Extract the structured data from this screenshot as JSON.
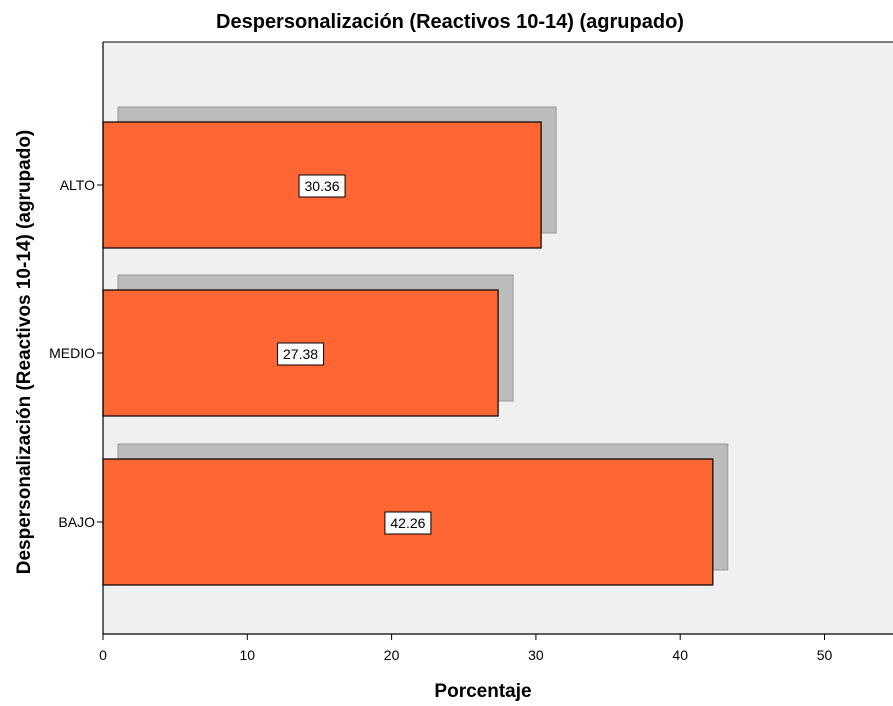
{
  "chart_data": {
    "type": "bar",
    "orientation": "horizontal",
    "title": "Despersonalización (Reactivos 10-14) (agrupado)",
    "xlabel": "Porcentaje",
    "ylabel": "Despersonalización (Reactivos 10-14) (agrupado)",
    "categories": [
      "ALTO",
      "MEDIO",
      "BAJO"
    ],
    "values": [
      30.36,
      27.38,
      42.26
    ],
    "data_labels": [
      "30.36",
      "27.38",
      "42.26"
    ],
    "xlim": [
      0,
      55
    ],
    "xticks": [
      0,
      10,
      20,
      30,
      40,
      50
    ],
    "xtick_labels": [
      "0",
      "10",
      "20",
      "30",
      "40",
      "50"
    ],
    "grid": false,
    "legend": "none",
    "colors": {
      "bar": "#ff6633",
      "bar_border": "#000000",
      "shadow": "#bcbcbc",
      "shadow_border": "#999999",
      "plot_background": "#f0f0f0",
      "label_box": "#ffffff"
    }
  }
}
